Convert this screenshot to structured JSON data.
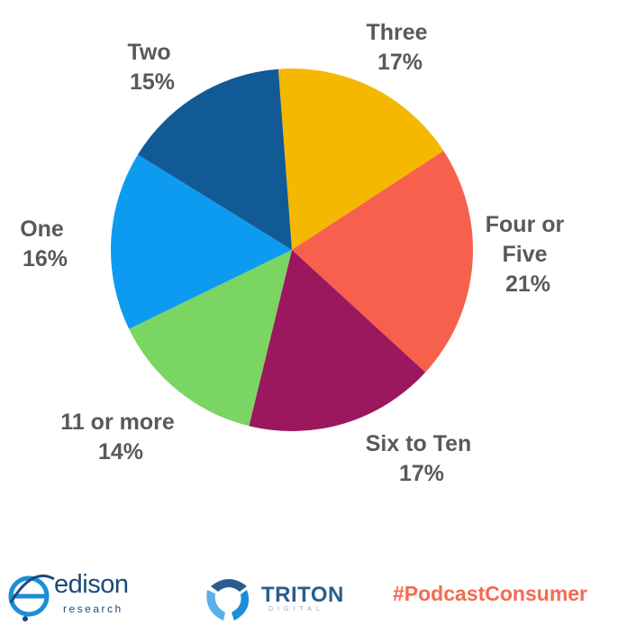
{
  "chart_data": {
    "type": "pie",
    "slices": [
      {
        "label": "Three",
        "value_label": "17%",
        "value": 17,
        "color": "#f5b800"
      },
      {
        "label": "Four or Five",
        "value_label": "21%",
        "value": 21,
        "color": "#f6604d"
      },
      {
        "label": "Six to Ten",
        "value_label": "17%",
        "value": 17,
        "color": "#9b185e"
      },
      {
        "label": "11 or more",
        "value_label": "14%",
        "value": 14,
        "color": "#7ad563"
      },
      {
        "label": "One",
        "value_label": "16%",
        "value": 16,
        "color": "#0d9bf2"
      },
      {
        "label": "Two",
        "value_label": "15%",
        "value": 15,
        "color": "#125a96"
      }
    ]
  },
  "footer": {
    "edison_name": "edison",
    "edison_sub": "research",
    "triton_name": "TRITON",
    "triton_sub": "DIGITAL",
    "hashtag": "#PodcastConsumer"
  },
  "colors": {
    "label_text": "#595959",
    "hashtag": "#f26b4f",
    "edison_blue": "#1a4a7a",
    "triton_blue": "#2a5d8f"
  }
}
